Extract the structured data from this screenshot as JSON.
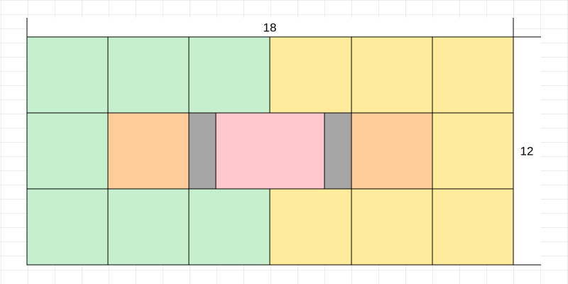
{
  "dimensions": {
    "width_label": "18",
    "height_label": "12"
  }
}
